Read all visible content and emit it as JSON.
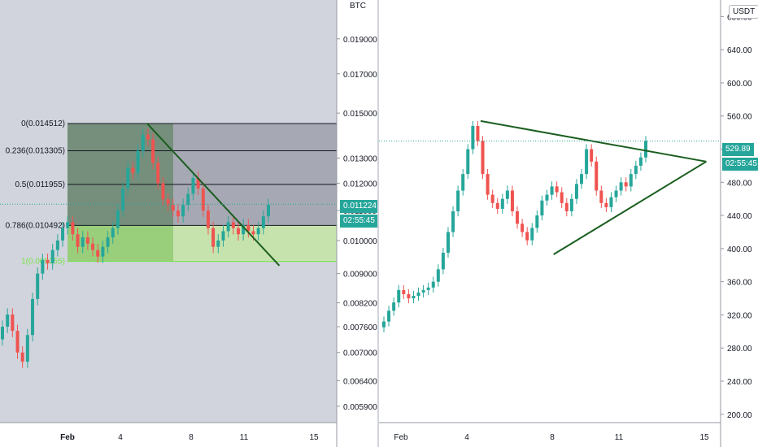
{
  "chart_data": [
    {
      "type": "candlestick",
      "symbol_currency": "BTC",
      "scale": "log",
      "ylim": [
        0.0056,
        0.0215
      ],
      "y_ticks": [
        "0.019000",
        "0.017000",
        "0.015000",
        "0.013000",
        "0.012000",
        "0.011000",
        "0.010000",
        "0.009000",
        "0.008200",
        "0.007600",
        "0.007000",
        "0.006400",
        "0.005900"
      ],
      "x_ticks": [
        "Feb",
        "4",
        "8",
        "11",
        "15"
      ],
      "last_price": "0.011224",
      "countdown": "02:55:45",
      "fib_levels": [
        {
          "label": "0(0.014512)",
          "value": 0.014512
        },
        {
          "label": "0.236(0.013305)",
          "value": 0.013305
        },
        {
          "label": "0.5(0.011955)",
          "value": 0.011955
        },
        {
          "label": "0.786(0.010492)",
          "value": 0.010492
        },
        {
          "label": "1(0.009355)",
          "value": 0.009355
        }
      ],
      "trendline": {
        "from": [
          5.5,
          0.01452
        ],
        "to": [
          13.0,
          0.00923
        ]
      },
      "series": [
        {
          "open": [
            0.0073,
            0.0076,
            0.0079,
            0.0075,
            0.007,
            0.0068,
            0.0074,
            0.0083,
            0.009,
            0.0094,
            0.0093,
            0.0097,
            0.01,
            0.0104,
            0.0106,
            0.0102,
            0.0098,
            0.0101,
            0.0099,
            0.0097,
            0.0095,
            0.0098,
            0.0101,
            0.0104,
            0.011,
            0.0118,
            0.0126,
            0.0124,
            0.0133,
            0.014,
            0.0138,
            0.0128,
            0.012,
            0.0114,
            0.0112,
            0.011,
            0.0108,
            0.0112,
            0.0116,
            0.0122,
            0.0118,
            0.011,
            0.0104,
            0.0098,
            0.01,
            0.0103,
            0.0106,
            0.0104,
            0.0102,
            0.0105,
            0.0103,
            0.0102,
            0.0104,
            0.0108
          ],
          "close": [
            0.0076,
            0.0079,
            0.0075,
            0.007,
            0.0068,
            0.0074,
            0.0083,
            0.009,
            0.0094,
            0.0093,
            0.0097,
            0.01,
            0.0104,
            0.0106,
            0.0102,
            0.0098,
            0.0101,
            0.0099,
            0.0097,
            0.0095,
            0.0098,
            0.0101,
            0.0104,
            0.011,
            0.0118,
            0.0126,
            0.0124,
            0.0133,
            0.014,
            0.0138,
            0.0128,
            0.012,
            0.0114,
            0.0112,
            0.011,
            0.0108,
            0.0112,
            0.0116,
            0.0122,
            0.0118,
            0.011,
            0.0104,
            0.0098,
            0.01,
            0.0103,
            0.0106,
            0.0104,
            0.0102,
            0.0105,
            0.0103,
            0.0102,
            0.0104,
            0.0108,
            0.0112
          ]
        }
      ]
    },
    {
      "type": "candlestick",
      "symbol_currency": "USDT",
      "scale": "linear",
      "ylim": [
        190,
        700
      ],
      "y_ticks": [
        "680.00",
        "640.00",
        "600.00",
        "560.00",
        "520.00",
        "480.00",
        "440.00",
        "400.00",
        "360.00",
        "320.00",
        "280.00",
        "240.00",
        "200.00"
      ],
      "x_ticks": [
        "Feb",
        "4",
        "8",
        "11",
        "15"
      ],
      "last_price": "529.89",
      "countdown": "02:55:45",
      "triangle": {
        "upper": {
          "from": [
            4.6,
            554
          ],
          "to": [
            14.8,
            505
          ]
        },
        "lower": {
          "from": [
            7.9,
            393
          ],
          "to": [
            14.8,
            505
          ]
        }
      },
      "series": [
        {
          "open": [
            305,
            312,
            325,
            335,
            350,
            345,
            340,
            343,
            347,
            350,
            353,
            360,
            375,
            395,
            420,
            445,
            470,
            490,
            520,
            548,
            530,
            490,
            465,
            455,
            448,
            460,
            470,
            445,
            430,
            420,
            410,
            425,
            440,
            458,
            465,
            475,
            468,
            455,
            445,
            460,
            478,
            490,
            520,
            505,
            470,
            455,
            450,
            462,
            470,
            480,
            475,
            490,
            500,
            510
          ],
          "close": [
            312,
            325,
            335,
            350,
            345,
            340,
            343,
            347,
            350,
            353,
            360,
            375,
            395,
            420,
            445,
            470,
            490,
            520,
            548,
            530,
            490,
            465,
            455,
            448,
            460,
            470,
            445,
            430,
            420,
            410,
            425,
            440,
            458,
            465,
            475,
            468,
            455,
            445,
            460,
            478,
            490,
            520,
            505,
            470,
            455,
            450,
            462,
            470,
            480,
            475,
            490,
            500,
            510,
            530
          ]
        }
      ]
    }
  ]
}
